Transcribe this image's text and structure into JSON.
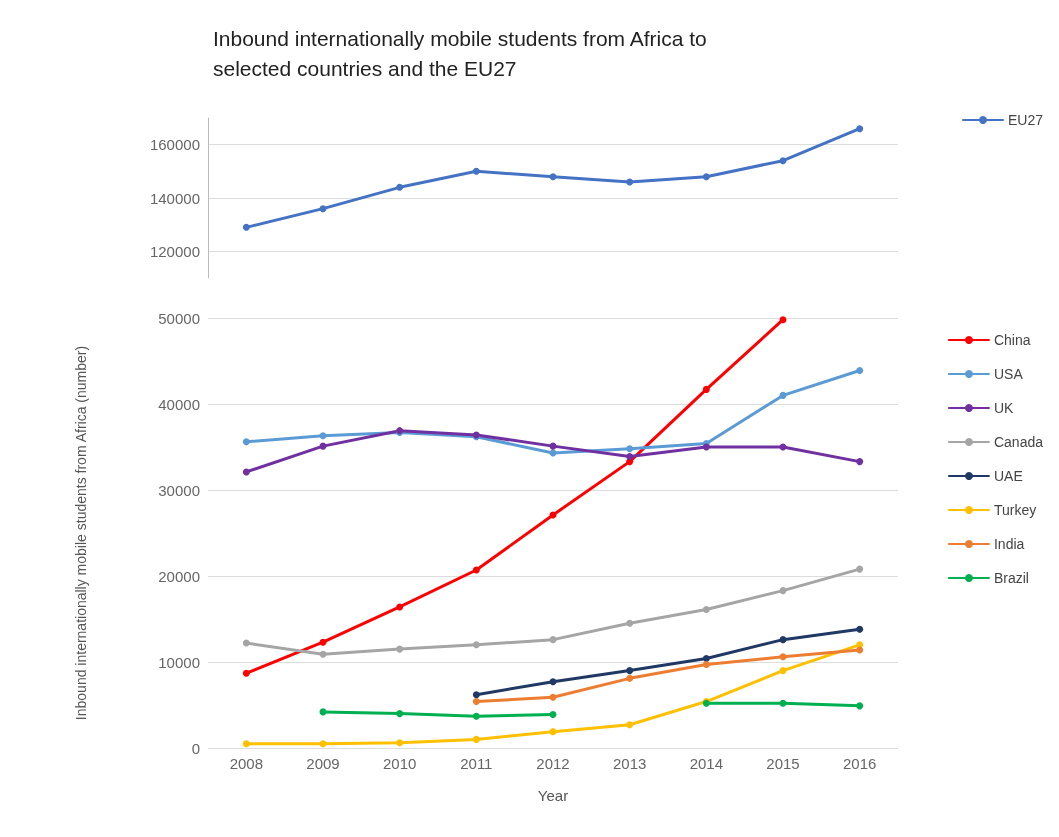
{
  "chart_data": [
    {
      "type": "line",
      "title": "Inbound internationally mobile students from Africa to selected countries and the EU27",
      "categories": [
        "2008",
        "2009",
        "2010",
        "2011",
        "2012",
        "2013",
        "2014",
        "2015",
        "2016"
      ],
      "ylim": [
        110000,
        170000
      ],
      "yticks": [
        120000,
        140000,
        160000
      ],
      "grid": "y",
      "legend": "top right",
      "marker": "circle",
      "tick_labels": "y",
      "series": [
        {
          "name": "EU27",
          "color": "#4472c4",
          "values": [
            129000,
            136000,
            144000,
            150000,
            148000,
            146000,
            148000,
            154000,
            166000
          ]
        }
      ]
    },
    {
      "type": "line",
      "xlabel": "Year",
      "ylabel": "Inbound internationally mobile students from Africa (number)",
      "categories": [
        "2008",
        "2009",
        "2010",
        "2011",
        "2012",
        "2013",
        "2014",
        "2015",
        "2016"
      ],
      "ylim": [
        0,
        50000
      ],
      "yticks": [
        0,
        10000,
        20000,
        30000,
        40000,
        50000
      ],
      "grid": "y",
      "legend": "right",
      "marker": "circle",
      "series": [
        {
          "name": "China",
          "color": "#ff0000",
          "values": [
            8700,
            12300,
            16400,
            20700,
            27100,
            33300,
            41700,
            49800,
            null
          ]
        },
        {
          "name": "USA",
          "color": "#5b9bd5",
          "values": [
            35600,
            36300,
            36700,
            36200,
            34300,
            34800,
            35400,
            41000,
            43900
          ]
        },
        {
          "name": "UK",
          "color": "#7030a0",
          "values": [
            32100,
            35100,
            36900,
            36400,
            35100,
            33900,
            35000,
            35000,
            33300
          ]
        },
        {
          "name": "Canada",
          "color": "#a5a5a5",
          "values": [
            12200,
            10900,
            11500,
            12000,
            12600,
            14500,
            16100,
            18300,
            20800
          ]
        },
        {
          "name": "UAE",
          "color": "#1f3864",
          "values": [
            null,
            null,
            null,
            6200,
            7700,
            9000,
            10400,
            12600,
            13800
          ]
        },
        {
          "name": "Turkey",
          "color": "#ffc000",
          "values": [
            500,
            500,
            600,
            1000,
            1900,
            2700,
            5400,
            9000,
            12000
          ]
        },
        {
          "name": "India",
          "color": "#ed7d31",
          "values": [
            null,
            null,
            null,
            5400,
            5900,
            8100,
            9700,
            10600,
            11400
          ]
        },
        {
          "name": "Brazil",
          "color": "#00b050",
          "values": [
            null,
            4200,
            4000,
            3700,
            3900,
            null,
            5200,
            5200,
            4900
          ]
        }
      ]
    }
  ]
}
